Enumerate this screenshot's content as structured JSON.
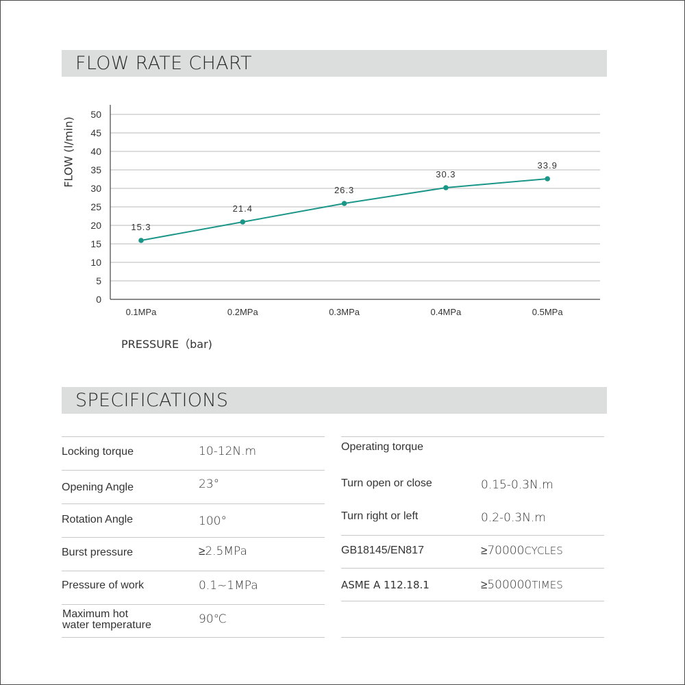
{
  "flow_section": {
    "title": "FLOW RATE CHART",
    "y_axis_label": "FLOW (l/min)",
    "x_axis_label": "PRESSURE（bar)"
  },
  "chart_data": {
    "type": "line",
    "title": "FLOW RATE CHART",
    "xlabel": "PRESSURE（bar)",
    "ylabel": "FLOW (l/min)",
    "categories": [
      "0.1MPa",
      "0.2MPa",
      "0.3MPa",
      "0.4MPa",
      "0.5MPa"
    ],
    "series": [
      {
        "name": "Flow",
        "values": [
          15.3,
          21.4,
          26.3,
          30.3,
          33.9
        ],
        "color": "#1a9688"
      }
    ],
    "data_labels": [
      "15.3",
      "21.4",
      "26.3",
      "30.3",
      "33.9"
    ],
    "y_ticks": [
      0,
      5,
      10,
      15,
      20,
      25,
      30,
      35,
      40,
      45,
      50
    ],
    "ylim": [
      0,
      50
    ],
    "grid": true,
    "legend": "none"
  },
  "spec_section": {
    "title": "SPECIFICATIONS",
    "left": [
      {
        "label": "Locking torque",
        "value": "10-12N.m"
      },
      {
        "label": "Opening Angle",
        "value": "23°"
      },
      {
        "label": "Rotation Angle",
        "value": "100°"
      },
      {
        "label": "Burst pressure",
        "value": "≥2.5MPa"
      },
      {
        "label": "Pressure of work",
        "value": "0.1~1MPa"
      },
      {
        "label": "Maximum hot water temperature",
        "label_line1": "Maximum hot",
        "label_line2": "water temperature",
        "value": "90℃"
      }
    ],
    "right": {
      "heading": "Operating torque",
      "rows": [
        {
          "label": "Turn open or close",
          "value": "0.15-0.3N.m"
        },
        {
          "label": "Turn right or left",
          "value": "0.2-0.3N.m"
        },
        {
          "label": "GB18145/EN817",
          "value_num": "≥70000",
          "value_unit": "CYCLES"
        },
        {
          "label": "ASME A 112.18.1",
          "value_num": "≥500000",
          "value_unit": "TIMES"
        }
      ]
    }
  },
  "colors": {
    "header_bg": "#dcdddd",
    "line": "#1a9688",
    "grid": "#c6c6c6",
    "axis": "#444444",
    "text": "#333333"
  }
}
